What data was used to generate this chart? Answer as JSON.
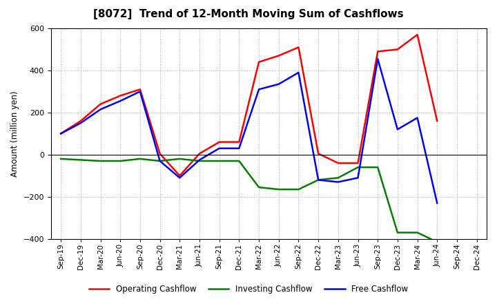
{
  "title": "[8072]  Trend of 12-Month Moving Sum of Cashflows",
  "ylabel": "Amount (million yen)",
  "ylim": [
    -400,
    600
  ],
  "yticks": [
    -400,
    -200,
    0,
    200,
    400,
    600
  ],
  "x_labels": [
    "Sep-19",
    "Dec-19",
    "Mar-20",
    "Jun-20",
    "Sep-20",
    "Dec-20",
    "Mar-21",
    "Jun-21",
    "Sep-21",
    "Dec-21",
    "Mar-22",
    "Jun-22",
    "Sep-22",
    "Dec-22",
    "Mar-23",
    "Jun-23",
    "Sep-23",
    "Dec-23",
    "Mar-24",
    "Jun-24",
    "Sep-24",
    "Dec-24"
  ],
  "operating_cashflow": [
    100,
    160,
    240,
    280,
    310,
    5,
    -100,
    5,
    60,
    60,
    440,
    470,
    510,
    5,
    -40,
    -40,
    490,
    500,
    570,
    160,
    null,
    null
  ],
  "investing_cashflow": [
    -20,
    -25,
    -30,
    -30,
    -20,
    -30,
    -20,
    -30,
    -30,
    -30,
    -155,
    -165,
    -165,
    -120,
    -110,
    -60,
    -60,
    -370,
    -370,
    -415,
    null,
    null
  ],
  "free_cashflow": [
    100,
    150,
    215,
    255,
    300,
    -30,
    -110,
    -25,
    30,
    30,
    310,
    335,
    390,
    -120,
    -130,
    -110,
    455,
    120,
    175,
    -230,
    null,
    null
  ],
  "colors": {
    "operating": "#FF0000",
    "investing": "#008000",
    "free": "#0000FF"
  },
  "legend_labels": [
    "Operating Cashflow",
    "Investing Cashflow",
    "Free Cashflow"
  ],
  "background_color": "#FFFFFF",
  "grid_color": "#BBBBBB"
}
